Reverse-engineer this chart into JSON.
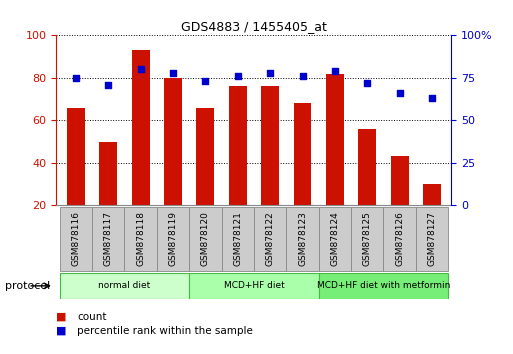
{
  "title": "GDS4883 / 1455405_at",
  "samples": [
    "GSM878116",
    "GSM878117",
    "GSM878118",
    "GSM878119",
    "GSM878120",
    "GSM878121",
    "GSM878122",
    "GSM878123",
    "GSM878124",
    "GSM878125",
    "GSM878126",
    "GSM878127"
  ],
  "counts": [
    66,
    50,
    93,
    80,
    66,
    76,
    76,
    68,
    82,
    56,
    43,
    30
  ],
  "percentiles": [
    75,
    71,
    80,
    78,
    73,
    76,
    78,
    76,
    79,
    72,
    66,
    63
  ],
  "bar_color": "#CC1100",
  "dot_color": "#0000CC",
  "left_axis_color": "#CC1100",
  "right_axis_color": "#0000CC",
  "ylim_left": [
    20,
    100
  ],
  "ylim_right": [
    0,
    100
  ],
  "yticks_left": [
    20,
    40,
    60,
    80,
    100
  ],
  "yticks_right": [
    0,
    25,
    50,
    75,
    100
  ],
  "ytick_labels_right": [
    "0",
    "25",
    "50",
    "75",
    "100%"
  ],
  "protocol_groups": [
    {
      "label": "normal diet",
      "start": 0,
      "end": 3,
      "color": "#CCFFCC"
    },
    {
      "label": "MCD+HF diet",
      "start": 4,
      "end": 7,
      "color": "#AAFFAA"
    },
    {
      "label": "MCD+HF diet with metformin",
      "start": 8,
      "end": 11,
      "color": "#77EE77"
    }
  ],
  "legend_items": [
    {
      "label": "count",
      "color": "#CC1100"
    },
    {
      "label": "percentile rank within the sample",
      "color": "#0000CC"
    }
  ],
  "protocol_label": "protocol",
  "bar_width": 0.55,
  "tick_bg_color": "#CCCCCC",
  "tick_edge_color": "#888888",
  "proto_edge_color": "#44BB44"
}
